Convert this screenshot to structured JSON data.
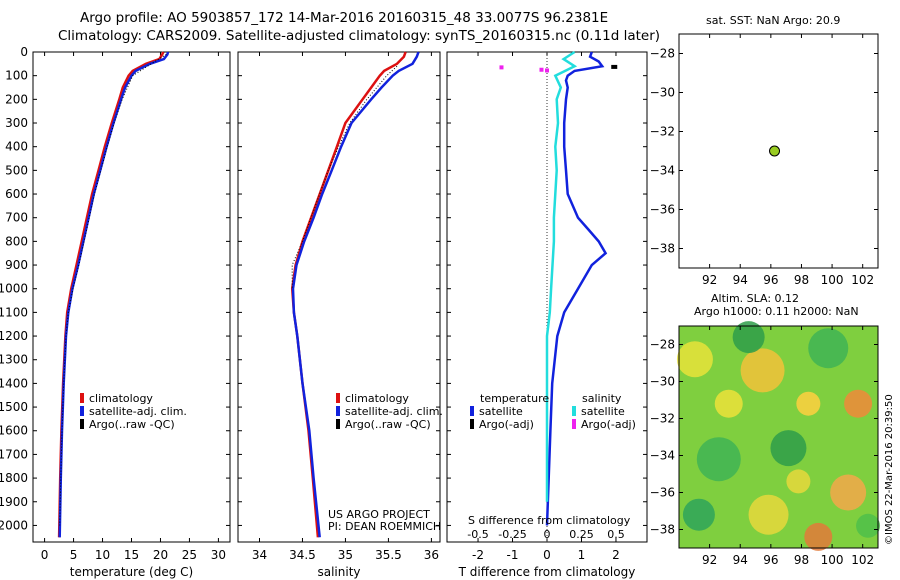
{
  "header": {
    "title_line1": "Argo profile: AO 5903857_172 14-Mar-2016 20160315_48 33.0077S 96.2381E",
    "title_line2": "Climatology: CARS2009. Satellite-adjusted climatology: synTS_20160315.nc (0.11d later)"
  },
  "chart_data": [
    {
      "id": "temperature",
      "type": "line",
      "xlabel": "temperature (deg C)",
      "xlim": [
        -2,
        32
      ],
      "xticks": [
        0,
        5,
        10,
        15,
        20,
        25,
        30
      ],
      "ylim": [
        2070,
        0
      ],
      "yticks": [
        0,
        100,
        200,
        300,
        400,
        500,
        600,
        700,
        800,
        900,
        1000,
        1100,
        1200,
        1300,
        1400,
        1500,
        1600,
        1700,
        1800,
        1900,
        2000
      ],
      "legend": [
        "climatology",
        "satellite-adj. clim.",
        "Argo(..raw -QC)"
      ],
      "colors": {
        "climatology": "#dd1111",
        "satellite": "#1122dd",
        "argo": "#000000"
      },
      "series": [
        {
          "name": "climatology",
          "color": "#dd1111",
          "depth": [
            0,
            10,
            30,
            50,
            80,
            100,
            150,
            200,
            300,
            400,
            500,
            600,
            700,
            800,
            900,
            1000,
            1100,
            1200,
            1400,
            1600,
            1800,
            2050
          ],
          "values": [
            20.5,
            20.3,
            19.8,
            17.5,
            15.2,
            14.5,
            13.5,
            12.9,
            11.6,
            10.4,
            9.3,
            8.2,
            7.3,
            6.4,
            5.5,
            4.6,
            3.9,
            3.6,
            3.2,
            2.9,
            2.7,
            2.5
          ]
        },
        {
          "name": "satellite-adj. clim.",
          "color": "#1122dd",
          "depth": [
            0,
            10,
            30,
            50,
            80,
            100,
            150,
            200,
            300,
            400,
            500,
            600,
            700,
            800,
            900,
            1000,
            1100,
            1200,
            1400,
            1600,
            1800,
            2050
          ],
          "values": [
            21.3,
            21.2,
            20.6,
            18.2,
            15.7,
            15.0,
            13.9,
            13.2,
            11.9,
            10.7,
            9.6,
            8.5,
            7.6,
            6.7,
            5.8,
            4.8,
            4.1,
            3.7,
            3.3,
            3.0,
            2.8,
            2.6
          ]
        },
        {
          "name": "Argo(..raw -QC)",
          "color": "#000000",
          "depth": [
            10,
            50,
            100,
            200,
            300,
            400,
            500,
            600,
            700,
            800,
            900,
            1000,
            1100,
            1200,
            1400,
            1600,
            1800,
            2000
          ],
          "values": [
            21.0,
            18.4,
            15.2,
            13.4,
            12.0,
            10.8,
            9.7,
            8.6,
            7.7,
            6.8,
            5.9,
            4.9,
            4.1,
            3.7,
            3.3,
            3.0,
            2.8,
            2.6
          ]
        }
      ]
    },
    {
      "id": "salinity",
      "type": "line",
      "xlabel": "salinity",
      "xlim": [
        33.75,
        36.1
      ],
      "xticks": [
        34,
        34.5,
        35,
        35.5,
        36
      ],
      "xtick_labels": [
        "34",
        "34.5",
        "35",
        "35.5",
        "36"
      ],
      "ylim": [
        2070,
        0
      ],
      "legend": [
        "climatology",
        "satellite-adj. clim.",
        "Argo(..raw -QC)"
      ],
      "series": [
        {
          "name": "climatology",
          "color": "#dd1111",
          "depth": [
            0,
            20,
            50,
            80,
            100,
            150,
            200,
            300,
            400,
            500,
            600,
            700,
            800,
            900,
            1000,
            1100,
            1200,
            1400,
            1600,
            1800,
            2050
          ],
          "values": [
            35.7,
            35.68,
            35.6,
            35.45,
            35.4,
            35.3,
            35.2,
            35.0,
            34.9,
            34.8,
            34.7,
            34.6,
            34.5,
            34.42,
            34.38,
            34.4,
            34.44,
            34.5,
            34.57,
            34.62,
            34.68
          ]
        },
        {
          "name": "satellite-adj. clim.",
          "color": "#1122dd",
          "depth": [
            0,
            20,
            50,
            80,
            100,
            150,
            200,
            300,
            400,
            500,
            600,
            700,
            800,
            900,
            1000,
            1100,
            1200,
            1400,
            1600,
            1800,
            2050
          ],
          "values": [
            35.85,
            35.83,
            35.78,
            35.62,
            35.55,
            35.42,
            35.3,
            35.07,
            34.95,
            34.84,
            34.73,
            34.63,
            34.52,
            34.43,
            34.39,
            34.4,
            34.44,
            34.5,
            34.58,
            34.63,
            34.7
          ]
        },
        {
          "name": "Argo(..raw -QC)",
          "color": "#000000",
          "depth": [
            60,
            100,
            200,
            300,
            400,
            500,
            600,
            700,
            800,
            900,
            1000
          ],
          "values": [
            35.6,
            35.48,
            35.25,
            35.05,
            34.92,
            34.8,
            34.7,
            34.6,
            34.5,
            34.38,
            34.38
          ]
        }
      ],
      "annotation_line1": "US ARGO PROJECT",
      "annotation_line2": "PI: DEAN ROEMMICH"
    },
    {
      "id": "difference",
      "type": "line",
      "xlabel": "T difference from climatology",
      "xlabel_top": "S difference from climatology",
      "xlim": [
        -2.9,
        2.9
      ],
      "xticks": [
        -2,
        -1,
        0,
        1,
        2
      ],
      "sticks": [
        -0.5,
        -0.25,
        0,
        0.25,
        0.5
      ],
      "stick_labels": [
        "-0.5",
        "-0.25",
        "0",
        "0.25",
        "0.5"
      ],
      "ylim": [
        2070,
        0
      ],
      "legend_title_temperature": "temperature",
      "legend_title_salinity": "salinity",
      "legend_satellite": "satellite",
      "legend_argo": "Argo(-adj)",
      "series": [
        {
          "name": "T satellite",
          "color": "#1122dd",
          "depth": [
            0,
            20,
            40,
            60,
            80,
            100,
            120,
            150,
            200,
            300,
            400,
            500,
            600,
            700,
            750,
            800,
            850,
            900,
            1000,
            1100,
            1200,
            1400,
            1600,
            1800,
            2000
          ],
          "values": [
            1.3,
            1.25,
            1.5,
            1.6,
            0.8,
            0.6,
            0.55,
            0.6,
            0.55,
            0.5,
            0.5,
            0.55,
            0.6,
            0.9,
            1.2,
            1.5,
            1.7,
            1.3,
            0.9,
            0.5,
            0.3,
            0.15,
            0.1,
            0.05,
            0.0
          ]
        },
        {
          "name": "S satellite",
          "color": "#22dddd",
          "depth": [
            0,
            30,
            60,
            100,
            150,
            200,
            300,
            400,
            500,
            600,
            700,
            800,
            900,
            1000,
            1100,
            1200,
            1400,
            1600,
            1800,
            1900
          ],
          "values": [
            0.2,
            0.12,
            0.2,
            0.06,
            0.1,
            0.07,
            0.08,
            0.06,
            0.07,
            0.06,
            0.05,
            0.05,
            0.04,
            0.03,
            0.02,
            0.0,
            0.0,
            0.0,
            0.0,
            0.0
          ]
        }
      ],
      "argo_marks_T": [
        {
          "depth": 63,
          "value": 1.95
        }
      ],
      "argo_marks_S": [
        {
          "depth": 65,
          "value": -0.33
        },
        {
          "depth": 78,
          "value": 0.0
        },
        {
          "depth": 75,
          "value": -0.04
        }
      ]
    },
    {
      "id": "position",
      "type": "scatter",
      "title": "sat. SST: NaN Argo: 20.9",
      "xlim": [
        90,
        103
      ],
      "ylim": [
        -39,
        -27
      ],
      "xticks": [
        92,
        94,
        96,
        98,
        100,
        102
      ],
      "yticks": [
        -28,
        -30,
        -32,
        -34,
        -36,
        -38
      ],
      "point": {
        "lon": 96.24,
        "lat": -33.0,
        "color": "#99cc22"
      }
    },
    {
      "id": "sla_map",
      "type": "heatmap",
      "title_line1": "Altim. SLA: 0.12",
      "title_line2": "Argo h1000: 0.11 h2000: NaN",
      "xlim": [
        90,
        103
      ],
      "ylim": [
        -39,
        -27
      ],
      "xticks": [
        92,
        94,
        96,
        98,
        100,
        102
      ],
      "yticks": [
        -28,
        -30,
        -32,
        -34,
        -36,
        -38
      ]
    }
  ],
  "footer": {
    "stamp": "©IMOS 22-Mar-2016 20:39:50"
  }
}
